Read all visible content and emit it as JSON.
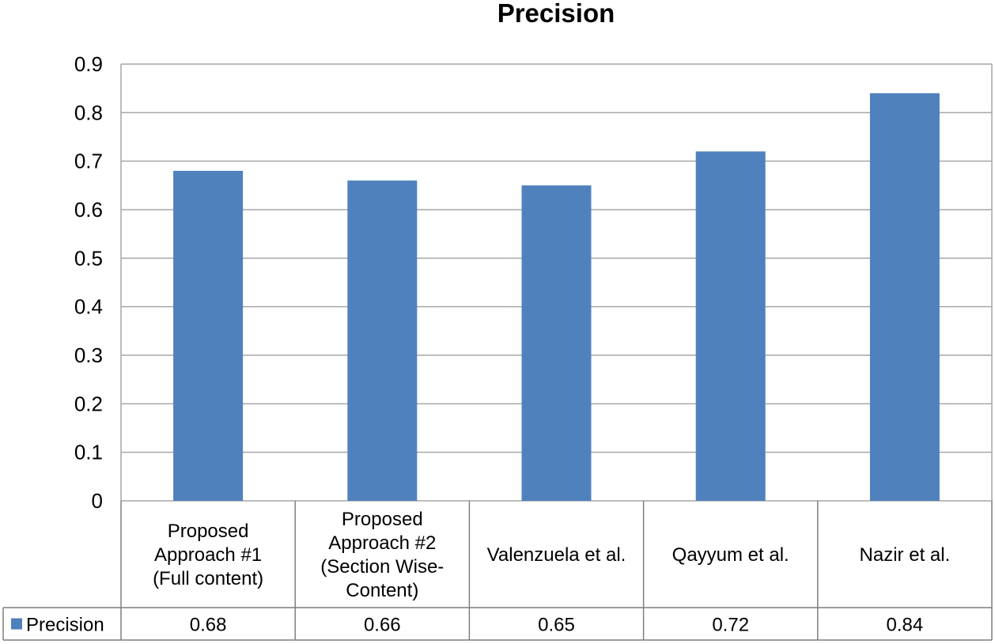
{
  "chart_data": {
    "type": "bar",
    "title": "Precision",
    "xlabel": "",
    "ylabel": "",
    "categories": [
      [
        "Proposed",
        "Approach #1",
        "(Full content)"
      ],
      [
        "Proposed",
        "Approach #2",
        "(Section Wise-",
        "Content)"
      ],
      [
        "Valenzuela et al."
      ],
      [
        "Qayyum et al."
      ],
      [
        "Nazir et al."
      ]
    ],
    "series": [
      {
        "name": "Precision",
        "values": [
          0.68,
          0.66,
          0.65,
          0.72,
          0.84
        ],
        "value_labels": [
          "0.68",
          "0.66",
          "0.65",
          "0.72",
          "0.84"
        ],
        "color": "#4f81bd"
      }
    ],
    "ylim": [
      0,
      0.9
    ],
    "yticks": [
      "0",
      "0.1",
      "0.2",
      "0.3",
      "0.4",
      "0.5",
      "0.6",
      "0.7",
      "0.8",
      "0.9"
    ],
    "grid": true,
    "legend": "data-table-left",
    "data_table": true,
    "colors": {
      "bar": "#4f81bd",
      "grid": "#a6a6a6",
      "text": "#000000"
    }
  }
}
